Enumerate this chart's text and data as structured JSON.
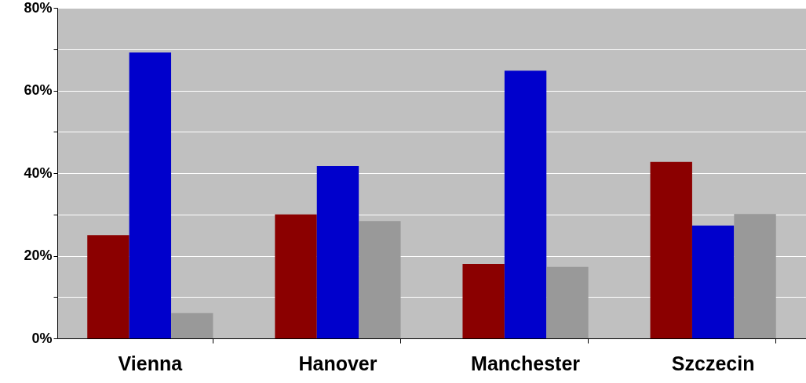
{
  "chart_data": {
    "type": "bar",
    "categories": [
      "Vienna",
      "Hanover",
      "Manchester",
      "Szczecin"
    ],
    "series": [
      {
        "color": "#8b0000",
        "values": [
          25,
          30,
          18,
          42.7
        ]
      },
      {
        "color": "#0000cc",
        "values": [
          69.2,
          41.7,
          64.8,
          27.3
        ]
      },
      {
        "color": "#999999",
        "values": [
          6.1,
          28.4,
          17.3,
          30.1
        ]
      }
    ],
    "ylim": [
      0,
      80
    ],
    "yticks": [
      {
        "value": 0,
        "label": "0%"
      },
      {
        "value": 10,
        "label": null
      },
      {
        "value": 20,
        "label": "20%"
      },
      {
        "value": 30,
        "label": null
      },
      {
        "value": 40,
        "label": "40%"
      },
      {
        "value": 50,
        "label": null
      },
      {
        "value": 60,
        "label": "60%"
      },
      {
        "value": 70,
        "label": null
      },
      {
        "value": 80,
        "label": "80%"
      }
    ],
    "grid": "y"
  }
}
